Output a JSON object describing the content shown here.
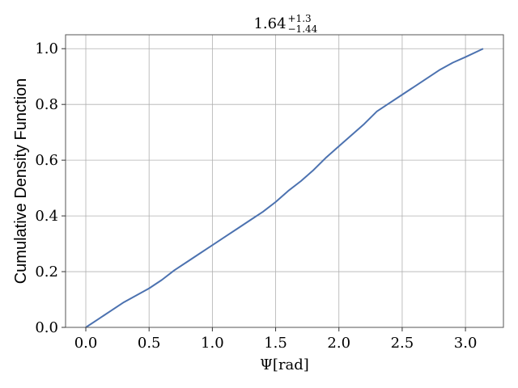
{
  "chart_data": {
    "type": "line",
    "title": {
      "main": "1.64",
      "upper": "+1.3",
      "lower": "−1.44"
    },
    "xlabel": "Ψ[rad]",
    "ylabel": "Cumulative Density Function",
    "xlim": [
      -0.16,
      3.3
    ],
    "ylim": [
      0.0,
      1.05
    ],
    "xticks": [
      0.0,
      0.5,
      1.0,
      1.5,
      2.0,
      2.5,
      3.0
    ],
    "xtick_labels": [
      "0.0",
      "0.5",
      "1.0",
      "1.5",
      "2.0",
      "2.5",
      "3.0"
    ],
    "yticks": [
      0.0,
      0.2,
      0.4,
      0.6,
      0.8,
      1.0
    ],
    "ytick_labels": [
      "0.0",
      "0.2",
      "0.4",
      "0.6",
      "0.8",
      "1.0"
    ],
    "grid": true,
    "series": [
      {
        "color": "#4c72b0",
        "x": [
          0.0,
          0.1,
          0.2,
          0.3,
          0.4,
          0.5,
          0.6,
          0.7,
          0.8,
          0.9,
          1.0,
          1.1,
          1.2,
          1.3,
          1.4,
          1.5,
          1.6,
          1.7,
          1.8,
          1.9,
          2.0,
          2.1,
          2.2,
          2.3,
          2.4,
          2.5,
          2.6,
          2.7,
          2.8,
          2.9,
          3.0,
          3.14
        ],
        "y": [
          0.0,
          0.03,
          0.06,
          0.09,
          0.115,
          0.14,
          0.17,
          0.205,
          0.235,
          0.265,
          0.295,
          0.325,
          0.355,
          0.385,
          0.415,
          0.45,
          0.49,
          0.525,
          0.565,
          0.61,
          0.65,
          0.69,
          0.73,
          0.775,
          0.805,
          0.835,
          0.865,
          0.895,
          0.925,
          0.95,
          0.97,
          1.0
        ]
      }
    ]
  }
}
